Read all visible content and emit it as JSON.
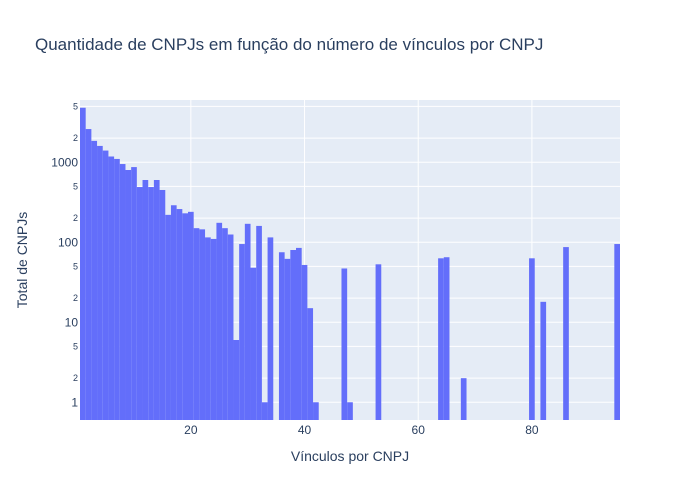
{
  "chart_data": {
    "type": "bar",
    "title": "Quantidade de CNPJs em função do número de vínculos por CNPJ",
    "xlabel": "Vínculos por CNPJ",
    "ylabel": "Total de CNPJs",
    "y_scale": "log",
    "xlim": [
      0.5,
      95.5
    ],
    "ylim": [
      0.6,
      6000
    ],
    "x_ticks": [
      20,
      40,
      60,
      80
    ],
    "y_major_ticks": [
      {
        "value": 1,
        "label": "1"
      },
      {
        "value": 10,
        "label": "10"
      },
      {
        "value": 100,
        "label": "100"
      },
      {
        "value": 1000,
        "label": "1000"
      }
    ],
    "y_minor_ticks": [
      {
        "value": 2,
        "label": "2"
      },
      {
        "value": 5,
        "label": "5"
      },
      {
        "value": 20,
        "label": "2"
      },
      {
        "value": 50,
        "label": "5"
      },
      {
        "value": 200,
        "label": "2"
      },
      {
        "value": 500,
        "label": "5"
      },
      {
        "value": 2000,
        "label": "2"
      },
      {
        "value": 5000,
        "label": "5"
      }
    ],
    "bar_color": "#636efa",
    "plot_background": "#e5ecf6",
    "grid": true,
    "x": [
      1,
      2,
      3,
      4,
      5,
      6,
      7,
      8,
      9,
      10,
      11,
      12,
      13,
      14,
      15,
      16,
      17,
      18,
      19,
      20,
      21,
      22,
      23,
      24,
      25,
      26,
      27,
      28,
      29,
      30,
      31,
      32,
      33,
      34,
      36,
      37,
      38,
      39,
      40,
      41,
      42,
      47,
      48,
      53,
      64,
      65,
      68,
      80,
      82,
      86,
      95
    ],
    "values": [
      4800,
      2600,
      1850,
      1600,
      1400,
      1180,
      1100,
      950,
      800,
      870,
      490,
      600,
      490,
      600,
      450,
      220,
      290,
      260,
      230,
      240,
      150,
      145,
      115,
      110,
      175,
      150,
      125,
      6,
      95,
      170,
      48,
      160,
      1,
      115,
      75,
      62,
      80,
      85,
      52,
      15,
      1,
      47,
      1,
      53,
      63,
      65,
      2,
      63,
      18,
      87,
      95
    ]
  }
}
